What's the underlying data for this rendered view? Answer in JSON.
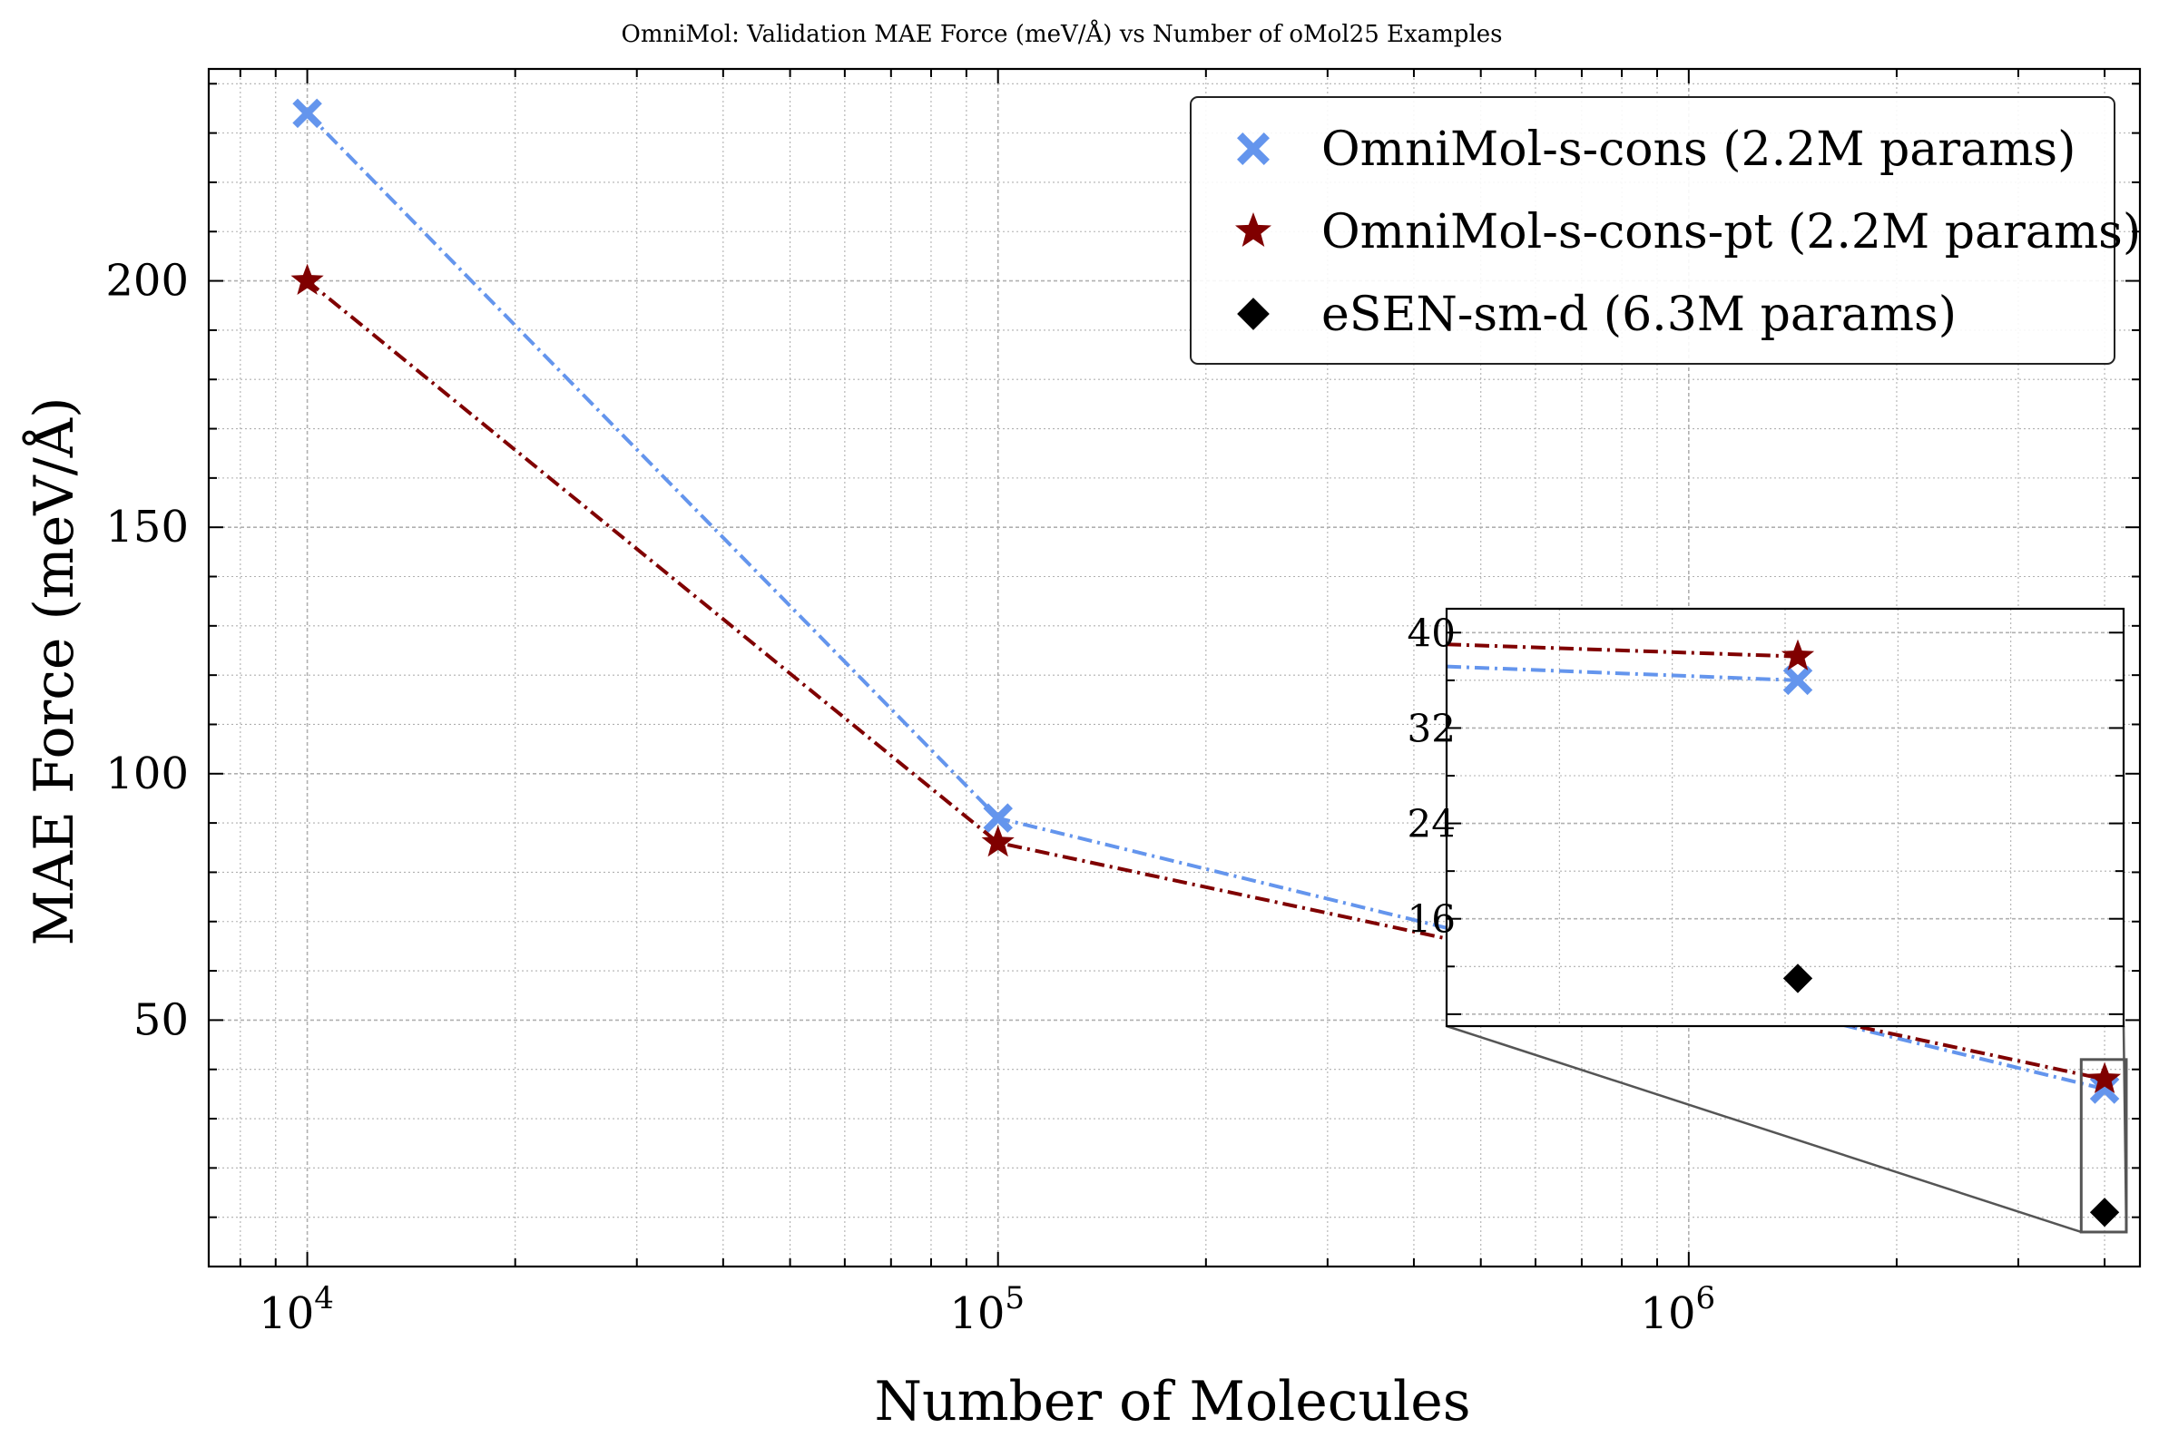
{
  "chart_data": {
    "type": "line",
    "title": "OmniMol: Validation MAE Force (meV/Å) vs Number of oMol25 Examples",
    "xlabel": "Number of Molecules",
    "ylabel": "MAE Force (meV/Å)",
    "xscale": "log",
    "xlim": [
      7200,
      4500000
    ],
    "ylim": [
      0,
      243
    ],
    "xticks": [
      {
        "value": 10000,
        "base": "10",
        "exp": "4"
      },
      {
        "value": 100000,
        "base": "10",
        "exp": "5"
      },
      {
        "value": 1000000,
        "base": "10",
        "exp": "6"
      }
    ],
    "yticks": [
      {
        "value": 50,
        "label": "50"
      },
      {
        "value": 100,
        "label": "100"
      },
      {
        "value": 150,
        "label": "150"
      },
      {
        "value": 200,
        "label": "200"
      }
    ],
    "grid": true,
    "legend_position": "top-right",
    "series": [
      {
        "name": "OmniMol-s-cons (2.2M params)",
        "color": "#6495ED",
        "marker": "x-filled",
        "linestyle": "dashdot",
        "x": [
          10000,
          100000,
          4000000
        ],
        "y": [
          234,
          91,
          36
        ]
      },
      {
        "name": "OmniMol-s-cons-pt (2.2M params)",
        "color": "#800000",
        "marker": "star",
        "linestyle": "dashdot",
        "x": [
          10000,
          100000,
          4000000
        ],
        "y": [
          200,
          86,
          38
        ]
      },
      {
        "name": "eSEN-sm-d (6.3M params)",
        "color": "#000000",
        "marker": "diamond",
        "linestyle": "none",
        "x": [
          4000000
        ],
        "y": [
          11
        ]
      }
    ],
    "inset": {
      "xlim": [
        3700000,
        4300000
      ],
      "ylim": [
        7,
        42
      ],
      "yticks": [
        {
          "value": 16,
          "label": "16"
        },
        {
          "value": 24,
          "label": "24"
        },
        {
          "value": 32,
          "label": "32"
        },
        {
          "value": 40,
          "label": "40"
        }
      ]
    }
  }
}
